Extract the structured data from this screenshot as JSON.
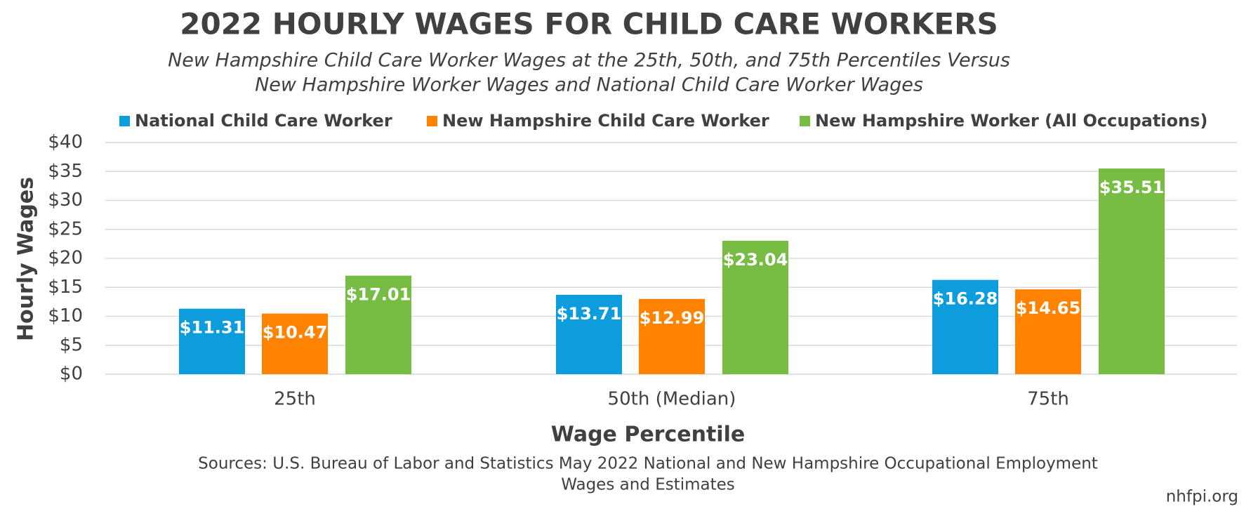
{
  "chart_data": {
    "type": "bar",
    "title": "2022 HOURLY WAGES FOR CHILD CARE WORKERS",
    "subtitle": [
      "New Hampshire Child Care Worker Wages at the 25th, 50th, and 75th Percentiles Versus",
      "New Hampshire Worker Wages and National Child Care Worker Wages"
    ],
    "y_label": "Hourly Wages",
    "x_label": "Wage Percentile",
    "source": [
      "Sources: U.S. Bureau of Labor and Statistics May 2022 National and New Hampshire Occupational Employment",
      "Wages and Estimates"
    ],
    "credit": "nhfpi.org",
    "categories": [
      "25th",
      "50th (Median)",
      "75th"
    ],
    "series": [
      {
        "name": "National Child Care Worker",
        "color": "#0e9ddc",
        "values": [
          11.31,
          13.71,
          16.28
        ],
        "value_labels": [
          "$11.31",
          "$13.71",
          "$16.28"
        ]
      },
      {
        "name": "New Hampshire Child Care Worker",
        "color": "#ff8200",
        "values": [
          10.47,
          12.99,
          14.65
        ],
        "value_labels": [
          "$10.47",
          "$12.99",
          "$14.65"
        ]
      },
      {
        "name": "New Hampshire Worker (All Occupations)",
        "color": "#77bc43",
        "values": [
          17.01,
          23.04,
          35.51
        ],
        "value_labels": [
          "$17.01",
          "$23.04",
          "$35.51"
        ]
      }
    ],
    "ylim": [
      0,
      40
    ],
    "yticks": [
      {
        "value": 0,
        "label": "$0"
      },
      {
        "value": 5,
        "label": "$5"
      },
      {
        "value": 10,
        "label": "$10"
      },
      {
        "value": 15,
        "label": "$15"
      },
      {
        "value": 20,
        "label": "$20"
      },
      {
        "value": 25,
        "label": "$25"
      },
      {
        "value": 30,
        "label": "$30"
      },
      {
        "value": 35,
        "label": "$35"
      },
      {
        "value": 40,
        "label": "$40"
      }
    ],
    "grid": true,
    "legend": "top"
  }
}
